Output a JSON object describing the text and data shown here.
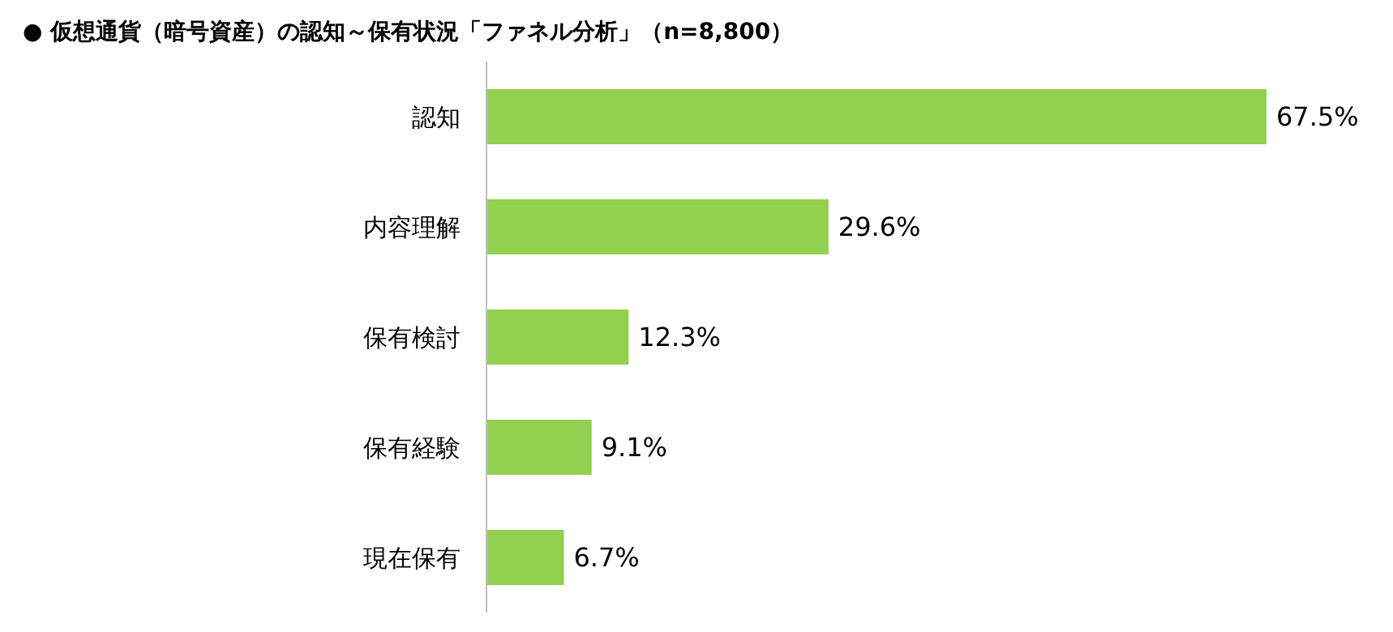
{
  "chart_data": {
    "type": "bar",
    "orientation": "horizontal",
    "title": "● 仮想通貨（暗号資産）の認知～保有状況「ファネル分析」（n=8,800）",
    "categories": [
      "認知",
      "内容理解",
      "保有検討",
      "保有経験",
      "現在保有"
    ],
    "values": [
      67.5,
      29.6,
      12.3,
      9.1,
      6.7
    ],
    "value_labels": [
      "67.5%",
      "29.6%",
      "12.3%",
      "9.1%",
      "6.7%"
    ],
    "color": "#92d050"
  }
}
